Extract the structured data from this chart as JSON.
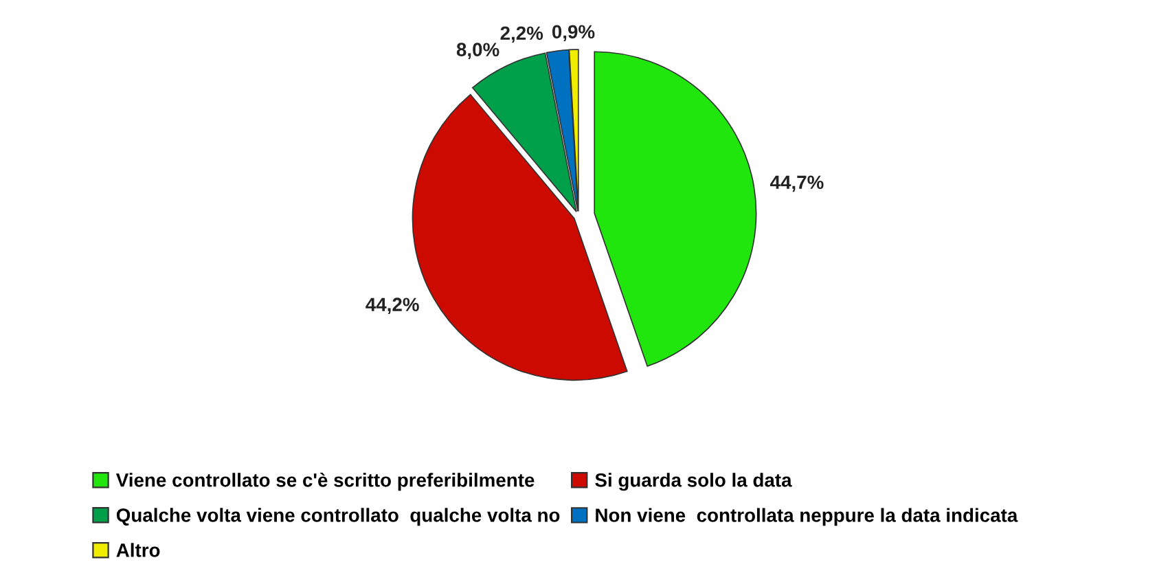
{
  "chart_data": {
    "type": "pie",
    "categories": [
      "Viene controllato se c'è scritto preferibilmente",
      "Si guarda solo la data",
      "Qualche volta viene controllato  qualche volta no",
      "Non viene  controllata neppure la data indicata",
      "Altro"
    ],
    "values": [
      44.7,
      44.2,
      8.0,
      2.2,
      0.9
    ],
    "value_labels": [
      "44,7%",
      "44,2%",
      "8,0%",
      "2,2%",
      "0,9%"
    ],
    "colors": [
      "#20e60e",
      "#cc0a00",
      "#00a04a",
      "#0070c0",
      "#f0ee00"
    ],
    "legend": "bottom"
  }
}
